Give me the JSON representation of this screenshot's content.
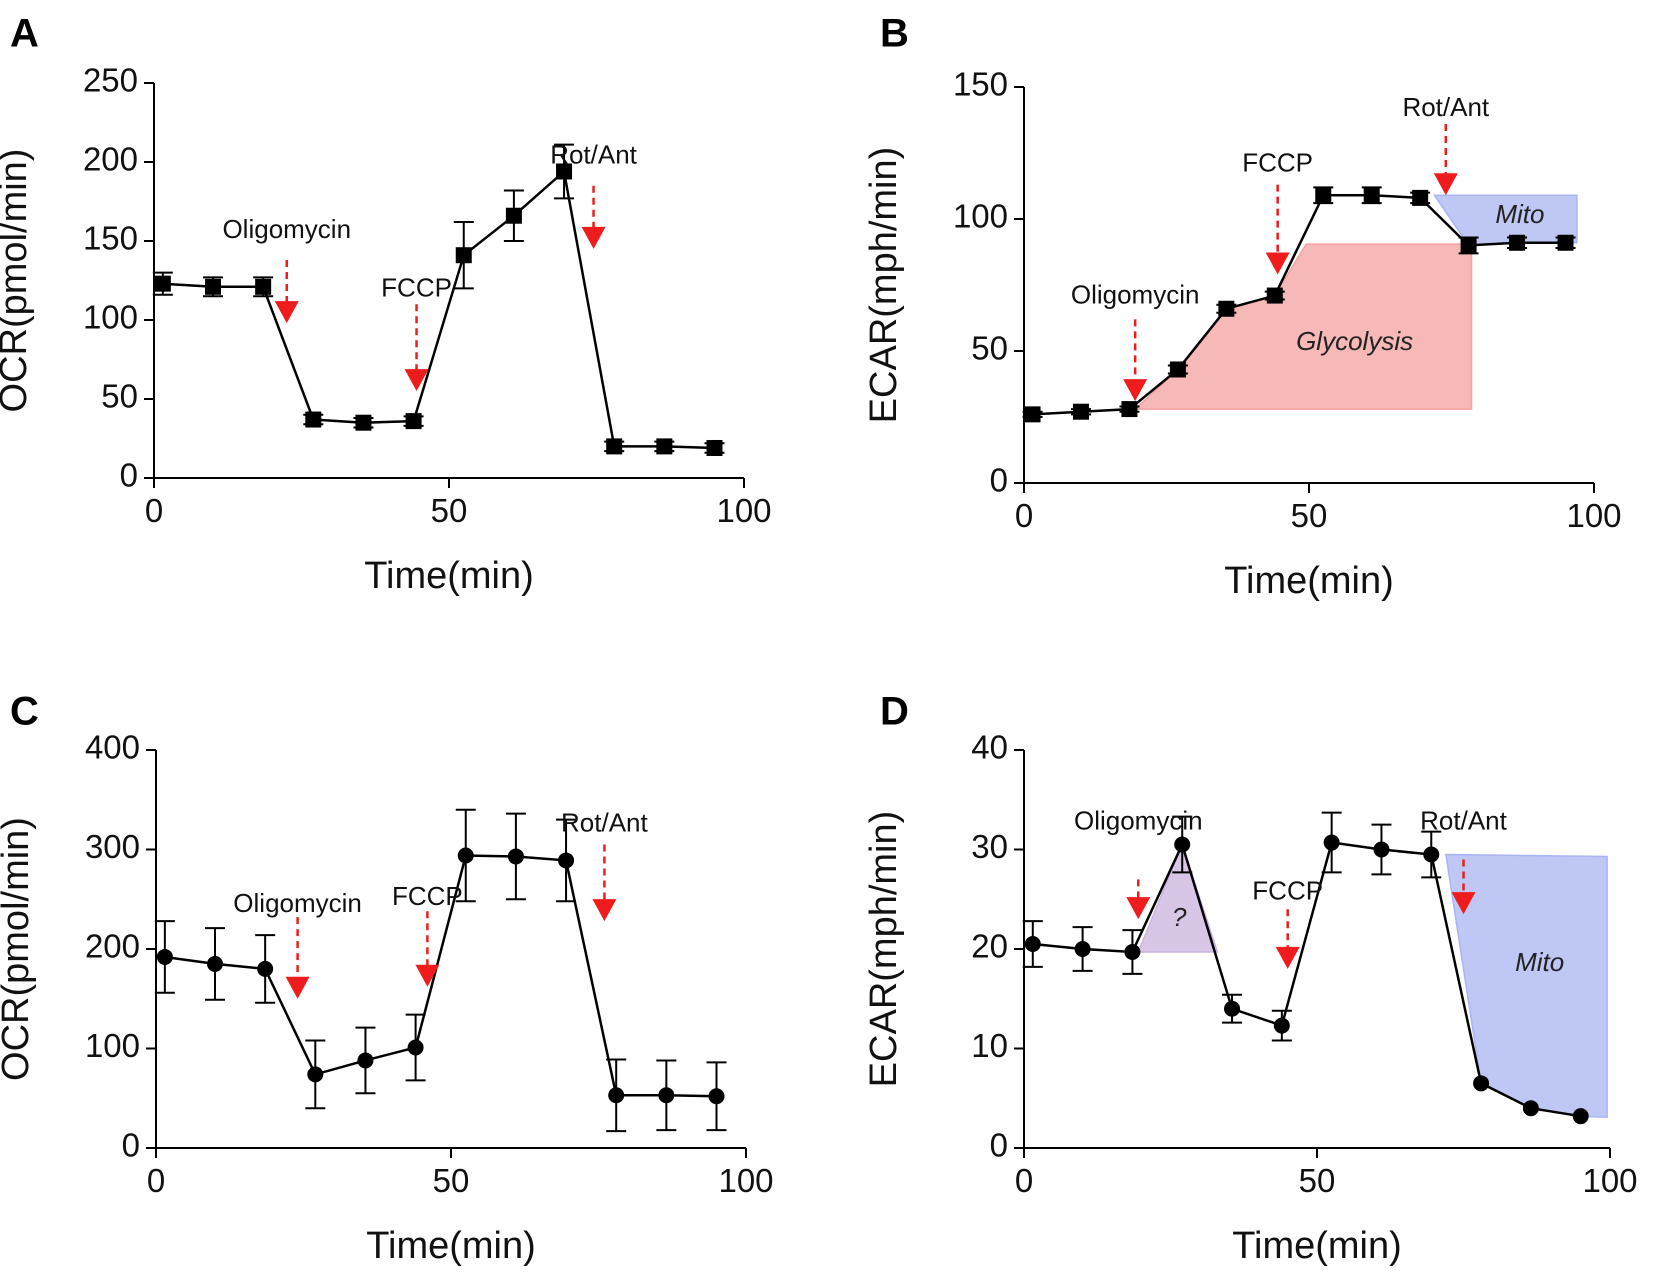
{
  "colors": {
    "line": "#000000",
    "arrow": "#ee1c1c",
    "glycolysis_fill": "#f4a0a0",
    "mito_fill": "#a9b4f2",
    "question_fill": "#c9b3de"
  },
  "chart_data": [
    {
      "panel": "A",
      "type": "line",
      "marker": "square",
      "xlabel": "Time(min)",
      "ylabel": "OCR(pmol/min)",
      "xlim": [
        0,
        100
      ],
      "ylim": [
        0,
        250
      ],
      "xticks": [
        0,
        50,
        100
      ],
      "yticks": [
        0,
        50,
        100,
        150,
        200,
        250
      ],
      "x": [
        1.5,
        10,
        18.5,
        27,
        35.5,
        44,
        52.5,
        61,
        69.5,
        78,
        86.5,
        95
      ],
      "y": [
        123,
        121,
        121,
        37,
        35,
        36,
        141,
        166,
        194,
        20,
        20,
        19
      ],
      "err": [
        7,
        6,
        6,
        3,
        3,
        3,
        21,
        16,
        17,
        3,
        3,
        3
      ],
      "annotations": [
        {
          "label": "Oligomycin",
          "x": 22.5,
          "arrow_top": 138,
          "arrow_tip": 98,
          "text_y": 152
        },
        {
          "label": "FCCP",
          "x": 44.5,
          "arrow_top": 110,
          "arrow_tip": 55,
          "text_y": 115
        },
        {
          "label": "Rot/Ant",
          "x": 74.5,
          "arrow_top": 185,
          "arrow_tip": 145,
          "text_y": 199
        }
      ],
      "shades": []
    },
    {
      "panel": "B",
      "type": "line",
      "marker": "square",
      "xlabel": "Time(min)",
      "ylabel": "ECAR(mph/min)",
      "xlim": [
        0,
        100
      ],
      "ylim": [
        0,
        150
      ],
      "xticks": [
        0,
        50,
        100
      ],
      "yticks": [
        0,
        50,
        100,
        150
      ],
      "x": [
        1.5,
        10,
        18.5,
        27,
        35.5,
        44,
        52.5,
        61,
        69.5,
        78,
        86.5,
        95
      ],
      "y": [
        26,
        27,
        28,
        43,
        66,
        71,
        109,
        109,
        108,
        90,
        91,
        91
      ],
      "err": [
        1,
        1,
        1,
        1.5,
        1.5,
        1.5,
        3,
        3,
        2,
        3,
        2,
        2
      ],
      "annotations": [
        {
          "label": "Oligomycin",
          "x": 19.5,
          "arrow_top": 62,
          "arrow_tip": 31,
          "text_y": 68
        },
        {
          "label": "FCCP",
          "x": 44.5,
          "arrow_top": 113,
          "arrow_tip": 79,
          "text_y": 118
        },
        {
          "label": "Rot/Ant",
          "x": 74,
          "arrow_top": 136,
          "arrow_tip": 109,
          "text_y": 139
        }
      ],
      "shades": [
        {
          "label": "Glycolysis",
          "points": [
            [
              19.5,
              28
            ],
            [
              27,
              43
            ],
            [
              35.5,
              66
            ],
            [
              44,
              71
            ],
            [
              49.5,
              90.5
            ],
            [
              78.5,
              90.5
            ],
            [
              78.5,
              28
            ]
          ],
          "color": "glycolysis_fill",
          "label_x": 58,
          "label_y": 53
        },
        {
          "label": "Mito",
          "points": [
            [
              72,
              109
            ],
            [
              97,
              109
            ],
            [
              97,
              91
            ],
            [
              86.5,
              91
            ],
            [
              78,
              90
            ]
          ],
          "color": "mito_fill",
          "label_x": 87,
          "label_y": 101
        }
      ]
    },
    {
      "panel": "C",
      "type": "line",
      "marker": "circle",
      "xlabel": "Time(min)",
      "ylabel": "OCR(pmol/min)",
      "xlim": [
        0,
        100
      ],
      "ylim": [
        0,
        400
      ],
      "xticks": [
        0,
        50,
        100
      ],
      "yticks": [
        0,
        100,
        200,
        300,
        400
      ],
      "x": [
        1.5,
        10,
        18.5,
        27,
        35.5,
        44,
        52.5,
        61,
        69.5,
        78,
        86.5,
        95
      ],
      "y": [
        192,
        185,
        180,
        74,
        88,
        101,
        294,
        293,
        289,
        53,
        53,
        52
      ],
      "err": [
        36,
        36,
        34,
        34,
        33,
        33,
        46,
        43,
        41,
        36,
        35,
        34
      ],
      "annotations": [
        {
          "label": "Oligomycin",
          "x": 24,
          "arrow_top": 232,
          "arrow_tip": 150,
          "text_y": 237
        },
        {
          "label": "FCCP",
          "x": 46,
          "arrow_top": 238,
          "arrow_tip": 162,
          "text_y": 244
        },
        {
          "label": "Rot/Ant",
          "x": 76,
          "arrow_top": 305,
          "arrow_tip": 228,
          "text_y": 318
        }
      ],
      "shades": []
    },
    {
      "panel": "D",
      "type": "line",
      "marker": "circle",
      "xlabel": "Time(min)",
      "ylabel": "ECAR(mph/min)",
      "xlim": [
        0,
        100
      ],
      "ylim": [
        0,
        40
      ],
      "xticks": [
        0,
        50,
        100
      ],
      "yticks": [
        0,
        10,
        20,
        30,
        40
      ],
      "x": [
        1.5,
        10,
        18.5,
        27,
        35.5,
        44,
        52.5,
        61,
        69.5,
        78,
        86.5,
        95
      ],
      "y": [
        20.5,
        20,
        19.7,
        30.5,
        14,
        12.3,
        30.7,
        30,
        29.5,
        6.5,
        4,
        3.2
      ],
      "err": [
        2.3,
        2.2,
        2.2,
        2.8,
        1.4,
        1.5,
        3,
        2.5,
        2.3,
        0,
        0,
        0
      ],
      "annotations": [
        {
          "label": "Oligomycin",
          "x": 19.5,
          "arrow_top": 27,
          "arrow_tip": 23,
          "text_y": 32
        },
        {
          "label": "FCCP",
          "x": 45,
          "arrow_top": 24,
          "arrow_tip": 18,
          "text_y": 25
        },
        {
          "label": "Rot/Ant",
          "x": 75,
          "arrow_top": 29,
          "arrow_tip": 23.5,
          "text_y": 32
        }
      ],
      "shades": [
        {
          "label": "?",
          "points": [
            [
              19.5,
              19.7
            ],
            [
              27,
              30.5
            ],
            [
              33,
              19.7
            ]
          ],
          "color": "question_fill",
          "label_x": 26.5,
          "label_y": 23
        },
        {
          "label": "Mito",
          "points": [
            [
              72,
              29.5
            ],
            [
              99.5,
              29.3
            ],
            [
              99.5,
              3.1
            ],
            [
              95,
              3.2
            ],
            [
              86.5,
              4
            ],
            [
              78,
              6.5
            ]
          ],
          "color": "mito_fill",
          "label_x": 88,
          "label_y": 18.5
        }
      ]
    }
  ]
}
